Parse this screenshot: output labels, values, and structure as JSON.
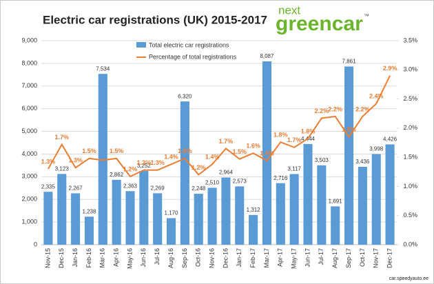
{
  "chart_data": {
    "type": "bar-line",
    "title": "Electric car registrations (UK) 2015-2017",
    "logo_top": "next",
    "logo_main": "greencar",
    "logo_mark": "™",
    "source": "car.speedyauto.ee",
    "categories": [
      "Nov-15",
      "Dec-15",
      "Jan-16",
      "Feb-16",
      "Mar-16",
      "Apr-16",
      "May-16",
      "Jun-16",
      "Jul-16",
      "Aug-16",
      "Sep-16",
      "Oct-16",
      "Nov-16",
      "Dec-16",
      "Jan-17",
      "Feb-17",
      "Mar-17",
      "Apr-17",
      "May-17",
      "Jun-17",
      "Jul-17",
      "Aug-17",
      "Sep-17",
      "Oct-17",
      "Nov-17",
      "Dec-17"
    ],
    "series": [
      {
        "name": "Total electric car registrations",
        "color": "#5b9bd5",
        "values": [
          2335,
          3123,
          2267,
          1238,
          7534,
          2862,
          2363,
          3252,
          2269,
          1170,
          6320,
          2248,
          2510,
          2964,
          2573,
          1312,
          8087,
          2716,
          3117,
          4444,
          3503,
          1691,
          7861,
          3436,
          3998,
          4426
        ],
        "value_labels": [
          "2,335",
          "3,123",
          "2,267",
          "1,238",
          "7,534",
          "2,862",
          "2,363",
          "3,252",
          "2,269",
          "1,170",
          "6,320",
          "2,248",
          "2,510",
          "2,964",
          "2,573",
          "1,312",
          "8,087",
          "2,716",
          "3,117",
          "4,444",
          "3,503",
          "1,691",
          "7,861",
          "3,436",
          "3,998",
          "4,426"
        ]
      },
      {
        "name": "Percentage of total registrations",
        "color": "#ed7d31",
        "axis": "y2",
        "values": [
          1.3,
          1.72,
          1.32,
          1.48,
          1.45,
          1.48,
          1.17,
          1.28,
          1.28,
          1.38,
          1.48,
          1.2,
          1.38,
          1.65,
          1.47,
          1.57,
          1.44,
          1.76,
          1.67,
          1.82,
          2.17,
          2.2,
          1.85,
          2.2,
          2.42,
          2.9
        ],
        "value_labels": [
          "1.3%",
          "1.7%",
          "1.3%",
          "1.5%",
          null,
          "1.5%",
          "1.2%",
          "1.3%",
          "1.3%",
          "1.4%",
          "1.5%",
          "1.2%",
          "1.4%",
          "1.7%",
          "1.5%",
          "1.6%",
          "1.4%",
          "1.8%",
          "1.7%",
          "1.8%",
          "2.2%",
          "2.2%",
          "1.9%",
          "2.2%",
          "2.4%",
          "2.9%"
        ]
      }
    ],
    "ylim": [
      0,
      9000
    ],
    "yticks": [
      {
        "value": 0,
        "label": "0"
      },
      {
        "value": 1000,
        "label": "1,000"
      },
      {
        "value": 2000,
        "label": "2,000"
      },
      {
        "value": 3000,
        "label": "3,000"
      },
      {
        "value": 4000,
        "label": "4,000"
      },
      {
        "value": 5000,
        "label": "5,000"
      },
      {
        "value": 6000,
        "label": "6,000"
      },
      {
        "value": 7000,
        "label": "7,000"
      },
      {
        "value": 8000,
        "label": "8,000"
      },
      {
        "value": 9000,
        "label": "9,000"
      }
    ],
    "y2lim": [
      0,
      3.5
    ],
    "y2ticks": [
      {
        "value": 0,
        "label": "0.0%"
      },
      {
        "value": 0.5,
        "label": "0.5%"
      },
      {
        "value": 1,
        "label": "1.0%"
      },
      {
        "value": 1.5,
        "label": "1.5%"
      },
      {
        "value": 2,
        "label": "2.0%"
      },
      {
        "value": 2.5,
        "label": "2.5%"
      },
      {
        "value": 3,
        "label": "3.0%"
      },
      {
        "value": 3.5,
        "label": "3.5%"
      }
    ],
    "grid": true
  }
}
